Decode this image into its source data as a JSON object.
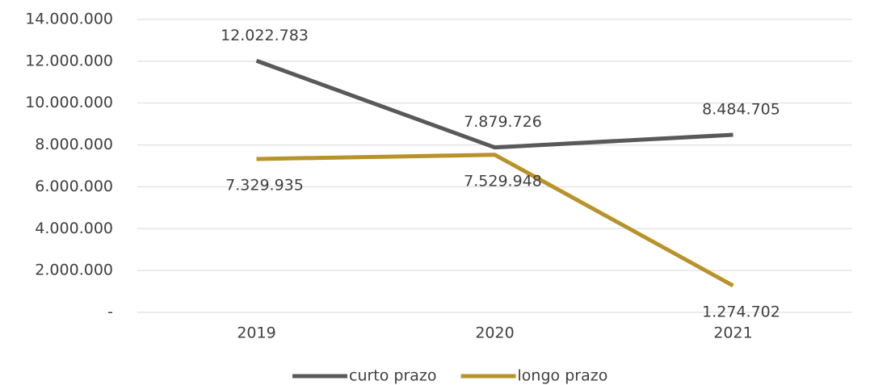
{
  "chart_data": {
    "type": "line",
    "categories": [
      "2019",
      "2020",
      "2021"
    ],
    "series": [
      {
        "name": "curto prazo",
        "color": "#595959",
        "values": [
          12022783,
          7879726,
          8484705
        ],
        "value_labels": [
          "12.022.783",
          "7.879.726",
          "8.484.705"
        ]
      },
      {
        "name": "longo prazo",
        "color": "#b8922a",
        "values": [
          7329935,
          7529948,
          1274702
        ],
        "value_labels": [
          "7.329.935",
          "7.529.948",
          "1.274.702"
        ]
      }
    ],
    "ylim": [
      0,
      14000000
    ],
    "yticks": [
      {
        "value": 0,
        "label": "-"
      },
      {
        "value": 2000000,
        "label": "2.000.000"
      },
      {
        "value": 4000000,
        "label": "4.000.000"
      },
      {
        "value": 6000000,
        "label": "6.000.000"
      },
      {
        "value": 8000000,
        "label": "8.000.000"
      },
      {
        "value": 10000000,
        "label": "10.000.000"
      },
      {
        "value": 12000000,
        "label": "12.000.000"
      },
      {
        "value": 14000000,
        "label": "14.000.000"
      }
    ],
    "grid": true,
    "legend": "bottom"
  }
}
